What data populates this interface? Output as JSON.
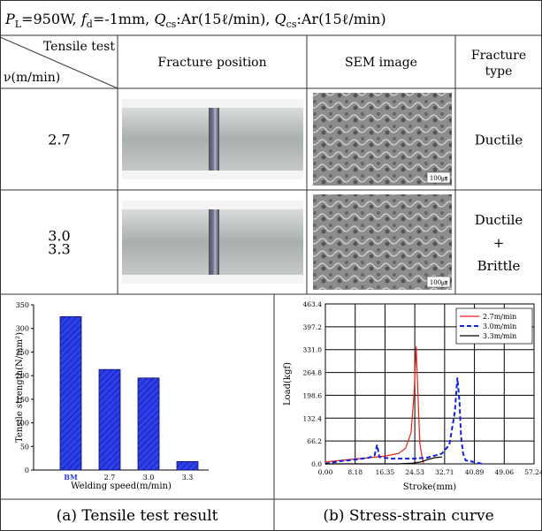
{
  "header": {
    "segments": [
      {
        "text": "P",
        "italic": true
      },
      {
        "text": "L",
        "sub": true
      },
      {
        "text": "=950W, "
      },
      {
        "text": "f",
        "italic": true
      },
      {
        "text": "d",
        "sub": true
      },
      {
        "text": "=-1mm, "
      },
      {
        "text": "Q",
        "italic": true
      },
      {
        "text": "cs",
        "sub": true
      },
      {
        "text": ":Ar(15ℓ/min), "
      },
      {
        "text": "Q",
        "italic": true
      },
      {
        "text": "cs",
        "sub": true
      },
      {
        "text": ":Ar(15ℓ/min)"
      }
    ]
  },
  "table": {
    "columns": {
      "corner_top": "Tensile test",
      "corner_bottom": "ν(m/min)",
      "fracture_position": "Fracture position",
      "sem_image": "SEM image",
      "fracture_type": [
        "Fracture",
        "type"
      ]
    },
    "rows": [
      {
        "speed": [
          "2.7"
        ],
        "fracture_type": [
          "Ductile"
        ],
        "scale_bar": "100㎛"
      },
      {
        "speed": [
          "3.0",
          "3.3"
        ],
        "fracture_type": [
          "Ductile",
          "+",
          "Brittle"
        ],
        "scale_bar": "100㎛"
      }
    ]
  },
  "chart_data": [
    {
      "type": "bar",
      "x_label": "Welding speed(m/min)",
      "y_label": "Tensile strength(N/mm²)",
      "categories": [
        "BM",
        "2.7",
        "3.0",
        "3.3"
      ],
      "values": [
        325,
        213,
        195,
        18
      ],
      "color": "#2b3ff0",
      "ylim": [
        0,
        350
      ],
      "yticks": [
        0,
        50,
        100,
        150,
        200,
        250,
        300,
        350
      ]
    },
    {
      "type": "line",
      "x_label": "Stroke(mm)",
      "y_label": "Load(kgf)",
      "grid": true,
      "legend": "upper right",
      "xlim": [
        0,
        57.24
      ],
      "xticks": [
        {
          "value": 0,
          "label": "0.00"
        },
        8.18,
        16.35,
        24.53,
        32.71,
        40.89,
        49.06,
        57.24
      ],
      "ylim": [
        0,
        463.4
      ],
      "yticks": [
        {
          "value": 0,
          "label": "0.0"
        },
        66.2,
        132.4,
        198.6,
        264.8,
        {
          "value": 331,
          "label": "331.0"
        },
        397.2,
        463.4
      ],
      "series": [
        {
          "name": "2.7m/min",
          "color": "#e8201a",
          "dash": false,
          "x": [
            0,
            4,
            8,
            12,
            16,
            20,
            22,
            23.5,
            24.3,
            24.9,
            25.4,
            25.9,
            26.5,
            27
          ],
          "values": [
            5,
            10,
            14,
            18,
            22,
            30,
            45,
            90,
            200,
            340,
            200,
            60,
            20,
            0
          ]
        },
        {
          "name": "3.0m/min",
          "color": "#1020e0",
          "dash": true,
          "x": [
            0,
            4,
            8,
            12,
            13.5,
            14.2,
            14.8,
            18,
            24,
            28,
            32,
            34,
            35.5,
            36.2,
            36.8,
            37.2,
            37.8,
            38.5,
            41,
            43
          ],
          "values": [
            0,
            8,
            12,
            18,
            25,
            55,
            20,
            15,
            15,
            18,
            30,
            55,
            150,
            250,
            180,
            80,
            30,
            10,
            5,
            0
          ]
        },
        {
          "name": "3.3m/min",
          "color": "#000000",
          "dash": false,
          "x": [
            0,
            20,
            24,
            26,
            28,
            30,
            32
          ],
          "values": [
            0,
            0,
            2,
            5,
            12,
            18,
            20
          ]
        }
      ]
    }
  ],
  "captions": [
    "(a) Tensile test result",
    "(b) Stress-strain curve"
  ]
}
